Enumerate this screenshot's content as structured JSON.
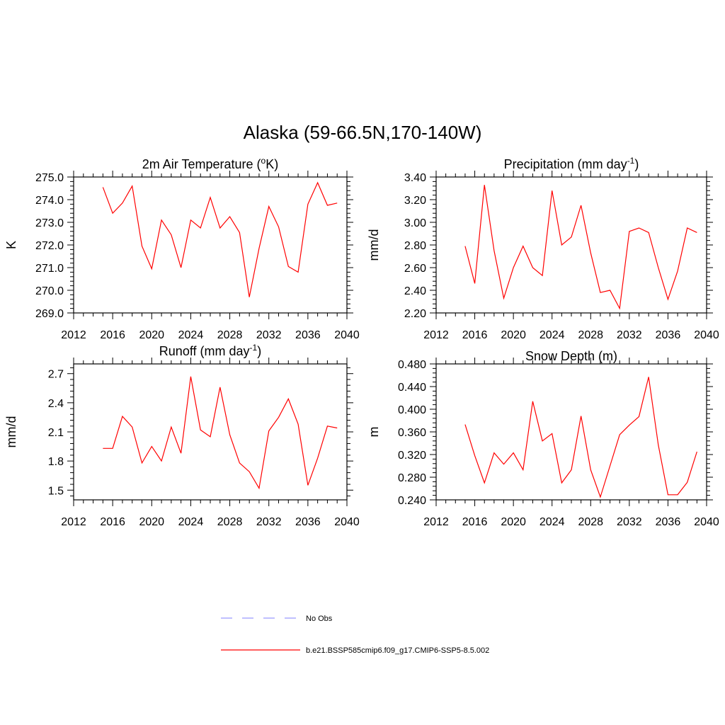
{
  "figure": {
    "title": "Alaska (59-66.5N,170-140W)"
  },
  "legend": {
    "placement": "bottom-center",
    "items": [
      {
        "label": "No Obs",
        "color": "#9999ff",
        "dash": "dashed"
      },
      {
        "label": "b.e21.BSSP585cmip6.f09_g17.CMIP6-SSP5-8.5.002",
        "color": "#ff0000",
        "dash": "solid"
      }
    ]
  },
  "chart_data": [
    {
      "type": "line",
      "title": "2m Air Temperature",
      "title_html": "2m Air Temperature (ºK)",
      "title_parts": [
        "2m Air Temperature (",
        "o",
        "K)"
      ],
      "title_super_index": 1,
      "ylabel": "K",
      "xlim": [
        2012,
        2040
      ],
      "ylim": [
        269.0,
        275.0
      ],
      "xticks": [
        2012,
        2016,
        2020,
        2024,
        2028,
        2032,
        2036,
        2040
      ],
      "yticks": [
        "269.0",
        "270.0",
        "271.0",
        "272.0",
        "273.0",
        "274.0",
        "275.0"
      ],
      "grid": false,
      "series": [
        {
          "color": "#ff0000",
          "x": [
            2015,
            2016,
            2017,
            2018,
            2019,
            2020,
            2021,
            2022,
            2023,
            2024,
            2025,
            2026,
            2027,
            2028,
            2029,
            2030,
            2031,
            2032,
            2033,
            2034,
            2035,
            2036,
            2037,
            2038,
            2039
          ],
          "values": [
            274.55,
            273.4,
            273.85,
            274.6,
            271.95,
            270.95,
            273.1,
            272.45,
            271.0,
            273.1,
            272.75,
            274.1,
            272.75,
            273.25,
            272.55,
            269.7,
            271.85,
            273.7,
            272.8,
            271.05,
            270.8,
            273.8,
            274.75,
            273.75,
            273.85
          ]
        }
      ]
    },
    {
      "type": "line",
      "title": "Precipitation",
      "title_parts": [
        "Precipitation (mm day",
        "-1",
        ")"
      ],
      "title_super_index": 1,
      "ylabel": "mm/d",
      "xlim": [
        2012,
        2040
      ],
      "ylim": [
        2.2,
        3.4
      ],
      "xticks": [
        2012,
        2016,
        2020,
        2024,
        2028,
        2032,
        2036,
        2040
      ],
      "yticks": [
        "2.20",
        "2.40",
        "2.60",
        "2.80",
        "3.00",
        "3.20",
        "3.40"
      ],
      "grid": false,
      "series": [
        {
          "color": "#ff0000",
          "x": [
            2015,
            2016,
            2017,
            2018,
            2019,
            2020,
            2021,
            2022,
            2023,
            2024,
            2025,
            2026,
            2027,
            2028,
            2029,
            2030,
            2031,
            2032,
            2033,
            2034,
            2035,
            2036,
            2037,
            2038,
            2039
          ],
          "values": [
            2.79,
            2.46,
            3.33,
            2.75,
            2.33,
            2.6,
            2.79,
            2.6,
            2.53,
            3.28,
            2.8,
            2.87,
            3.15,
            2.73,
            2.38,
            2.4,
            2.24,
            2.92,
            2.95,
            2.91,
            2.6,
            2.32,
            2.57,
            2.95,
            2.91
          ]
        }
      ]
    },
    {
      "type": "line",
      "title": "Runoff",
      "title_parts": [
        "Runoff (mm day",
        "-1",
        ")"
      ],
      "title_super_index": 1,
      "ylabel": "mm/d",
      "xlim": [
        2012,
        2040
      ],
      "ylim": [
        1.4,
        2.8
      ],
      "xticks": [
        2012,
        2016,
        2020,
        2024,
        2028,
        2032,
        2036,
        2040
      ],
      "yticks": [
        "1.5",
        "1.8",
        "2.1",
        "2.4",
        "2.7"
      ],
      "ytick_values": [
        1.5,
        1.8,
        2.1,
        2.4,
        2.7
      ],
      "grid": false,
      "series": [
        {
          "color": "#ff0000",
          "x": [
            2015,
            2016,
            2017,
            2018,
            2019,
            2020,
            2021,
            2022,
            2023,
            2024,
            2025,
            2026,
            2027,
            2028,
            2029,
            2030,
            2031,
            2032,
            2033,
            2034,
            2035,
            2036,
            2037,
            2038,
            2039
          ],
          "values": [
            1.93,
            1.93,
            2.26,
            2.15,
            1.78,
            1.95,
            1.8,
            2.15,
            1.88,
            2.67,
            2.12,
            2.05,
            2.56,
            2.07,
            1.78,
            1.69,
            1.52,
            2.11,
            2.25,
            2.44,
            2.18,
            1.55,
            1.83,
            2.16,
            2.14
          ]
        }
      ]
    },
    {
      "type": "line",
      "title": "Snow Depth (m)",
      "title_parts": [
        "Snow Depth (m)"
      ],
      "title_super_index": -1,
      "ylabel": "m",
      "xlim": [
        2012,
        2040
      ],
      "ylim": [
        0.24,
        0.48
      ],
      "xticks": [
        2012,
        2016,
        2020,
        2024,
        2028,
        2032,
        2036,
        2040
      ],
      "yticks": [
        "0.240",
        "0.280",
        "0.320",
        "0.360",
        "0.400",
        "0.440",
        "0.480"
      ],
      "grid": false,
      "series": [
        {
          "color": "#ff0000",
          "x": [
            2015,
            2016,
            2017,
            2018,
            2019,
            2020,
            2021,
            2022,
            2023,
            2024,
            2025,
            2026,
            2027,
            2028,
            2029,
            2030,
            2031,
            2032,
            2033,
            2034,
            2035,
            2036,
            2037,
            2038,
            2039
          ],
          "values": [
            0.373,
            0.318,
            0.27,
            0.323,
            0.303,
            0.323,
            0.293,
            0.414,
            0.344,
            0.357,
            0.27,
            0.293,
            0.388,
            0.293,
            0.245,
            0.3,
            0.355,
            0.372,
            0.387,
            0.457,
            0.337,
            0.249,
            0.249,
            0.271,
            0.325
          ]
        }
      ]
    }
  ]
}
